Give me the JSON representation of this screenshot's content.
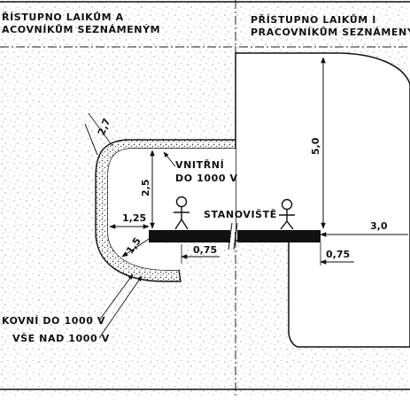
{
  "headers": {
    "left_line1": "ŘÍSTUPNO LAIKŮM A",
    "left_line2": "ACOVNÍKŮM SEZNÁMENÝM",
    "right_line1": "PŘÍSTUPNO LAIKŮM I",
    "right_line2": "PRACOVNÍKŮM SEZNÁMENÝM"
  },
  "labels": {
    "vnitrni_line1": "VNITŘNÍ",
    "vnitrni_line2": "DO 1000 V",
    "stanoviste": "STANOVIŠTĚ",
    "bottom_line1": "KOVNÍ DO 1000 V",
    "bottom_line2": "VŠE NAD 1000 V"
  },
  "dimensions": {
    "d_2_7": "2,7",
    "d_2_5": "2,5",
    "d_1_25": "1,25",
    "d_1_5": "1,5",
    "d_0_75_left": "0,75",
    "d_0_75_right": "0,75",
    "d_5_0": "5,0",
    "d_3_0": "3,0"
  }
}
